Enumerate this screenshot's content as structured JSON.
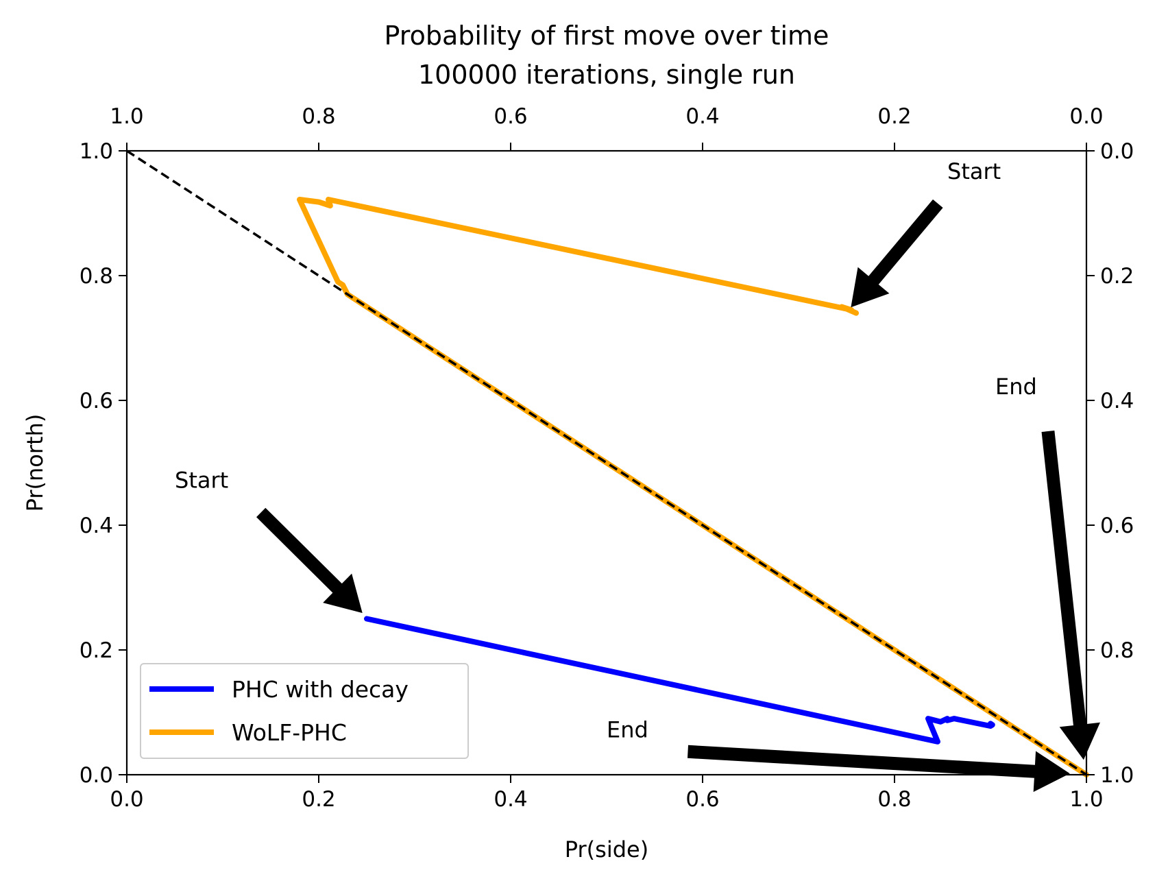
{
  "chart_data": {
    "type": "line",
    "title": "Probability of first move over time",
    "subtitle": "100000 iterations, single run",
    "xlabel": "Pr(side)",
    "ylabel": "Pr(north)",
    "xlim": [
      0,
      1
    ],
    "ylim": [
      0,
      1
    ],
    "x_ticks": [
      "0.0",
      "0.2",
      "0.4",
      "0.6",
      "0.8",
      "1.0"
    ],
    "y_ticks": [
      "0.0",
      "0.2",
      "0.4",
      "0.6",
      "0.8",
      "1.0"
    ],
    "top_ticks": [
      "1.0",
      "0.8",
      "0.6",
      "0.4",
      "0.2",
      "0.0"
    ],
    "right_ticks": [
      "1.0",
      "0.8",
      "0.6",
      "0.4",
      "0.2",
      "0.0"
    ],
    "grid": false,
    "legend_position": "lower left",
    "reference_line": {
      "style": "dashed",
      "color": "#000000",
      "x": [
        0.0,
        1.0
      ],
      "y": [
        1.0,
        0.0
      ]
    },
    "series": [
      {
        "name": "PHC with decay",
        "color": "#0000ff",
        "x": [
          0.25,
          0.845,
          0.835,
          0.84,
          0.848,
          0.855,
          0.855,
          0.862,
          0.9,
          0.902,
          0.9
        ],
        "y": [
          0.25,
          0.053,
          0.09,
          0.088,
          0.085,
          0.09,
          0.087,
          0.09,
          0.078,
          0.08,
          0.082
        ]
      },
      {
        "name": "WoLF-PHC",
        "color": "#ffa500",
        "x": [
          0.76,
          0.745,
          0.755,
          0.21,
          0.212,
          0.2,
          0.18,
          0.22,
          0.225,
          0.23,
          0.5,
          0.8,
          0.9,
          1.0
        ],
        "y": [
          0.74,
          0.75,
          0.745,
          0.922,
          0.912,
          0.918,
          0.922,
          0.79,
          0.785,
          0.77,
          0.5,
          0.2,
          0.1,
          0.0
        ]
      }
    ],
    "annotations": [
      {
        "text": "Start",
        "text_at": [
          0.855,
          0.955
        ],
        "arrow_from": [
          0.845,
          0.915
        ],
        "arrow_to": [
          0.755,
          0.75
        ]
      },
      {
        "text": "End",
        "text_at": [
          0.905,
          0.61
        ],
        "arrow_from": [
          0.96,
          0.55
        ],
        "arrow_to": [
          0.997,
          0.025
        ]
      },
      {
        "text": "Start",
        "text_at": [
          0.05,
          0.46
        ],
        "arrow_from": [
          0.14,
          0.42
        ],
        "arrow_to": [
          0.245,
          0.26
        ]
      },
      {
        "text": "End",
        "text_at": [
          0.5,
          0.06
        ],
        "arrow_from": [
          0.585,
          0.037
        ],
        "arrow_to": [
          0.982,
          0.002
        ]
      }
    ]
  }
}
